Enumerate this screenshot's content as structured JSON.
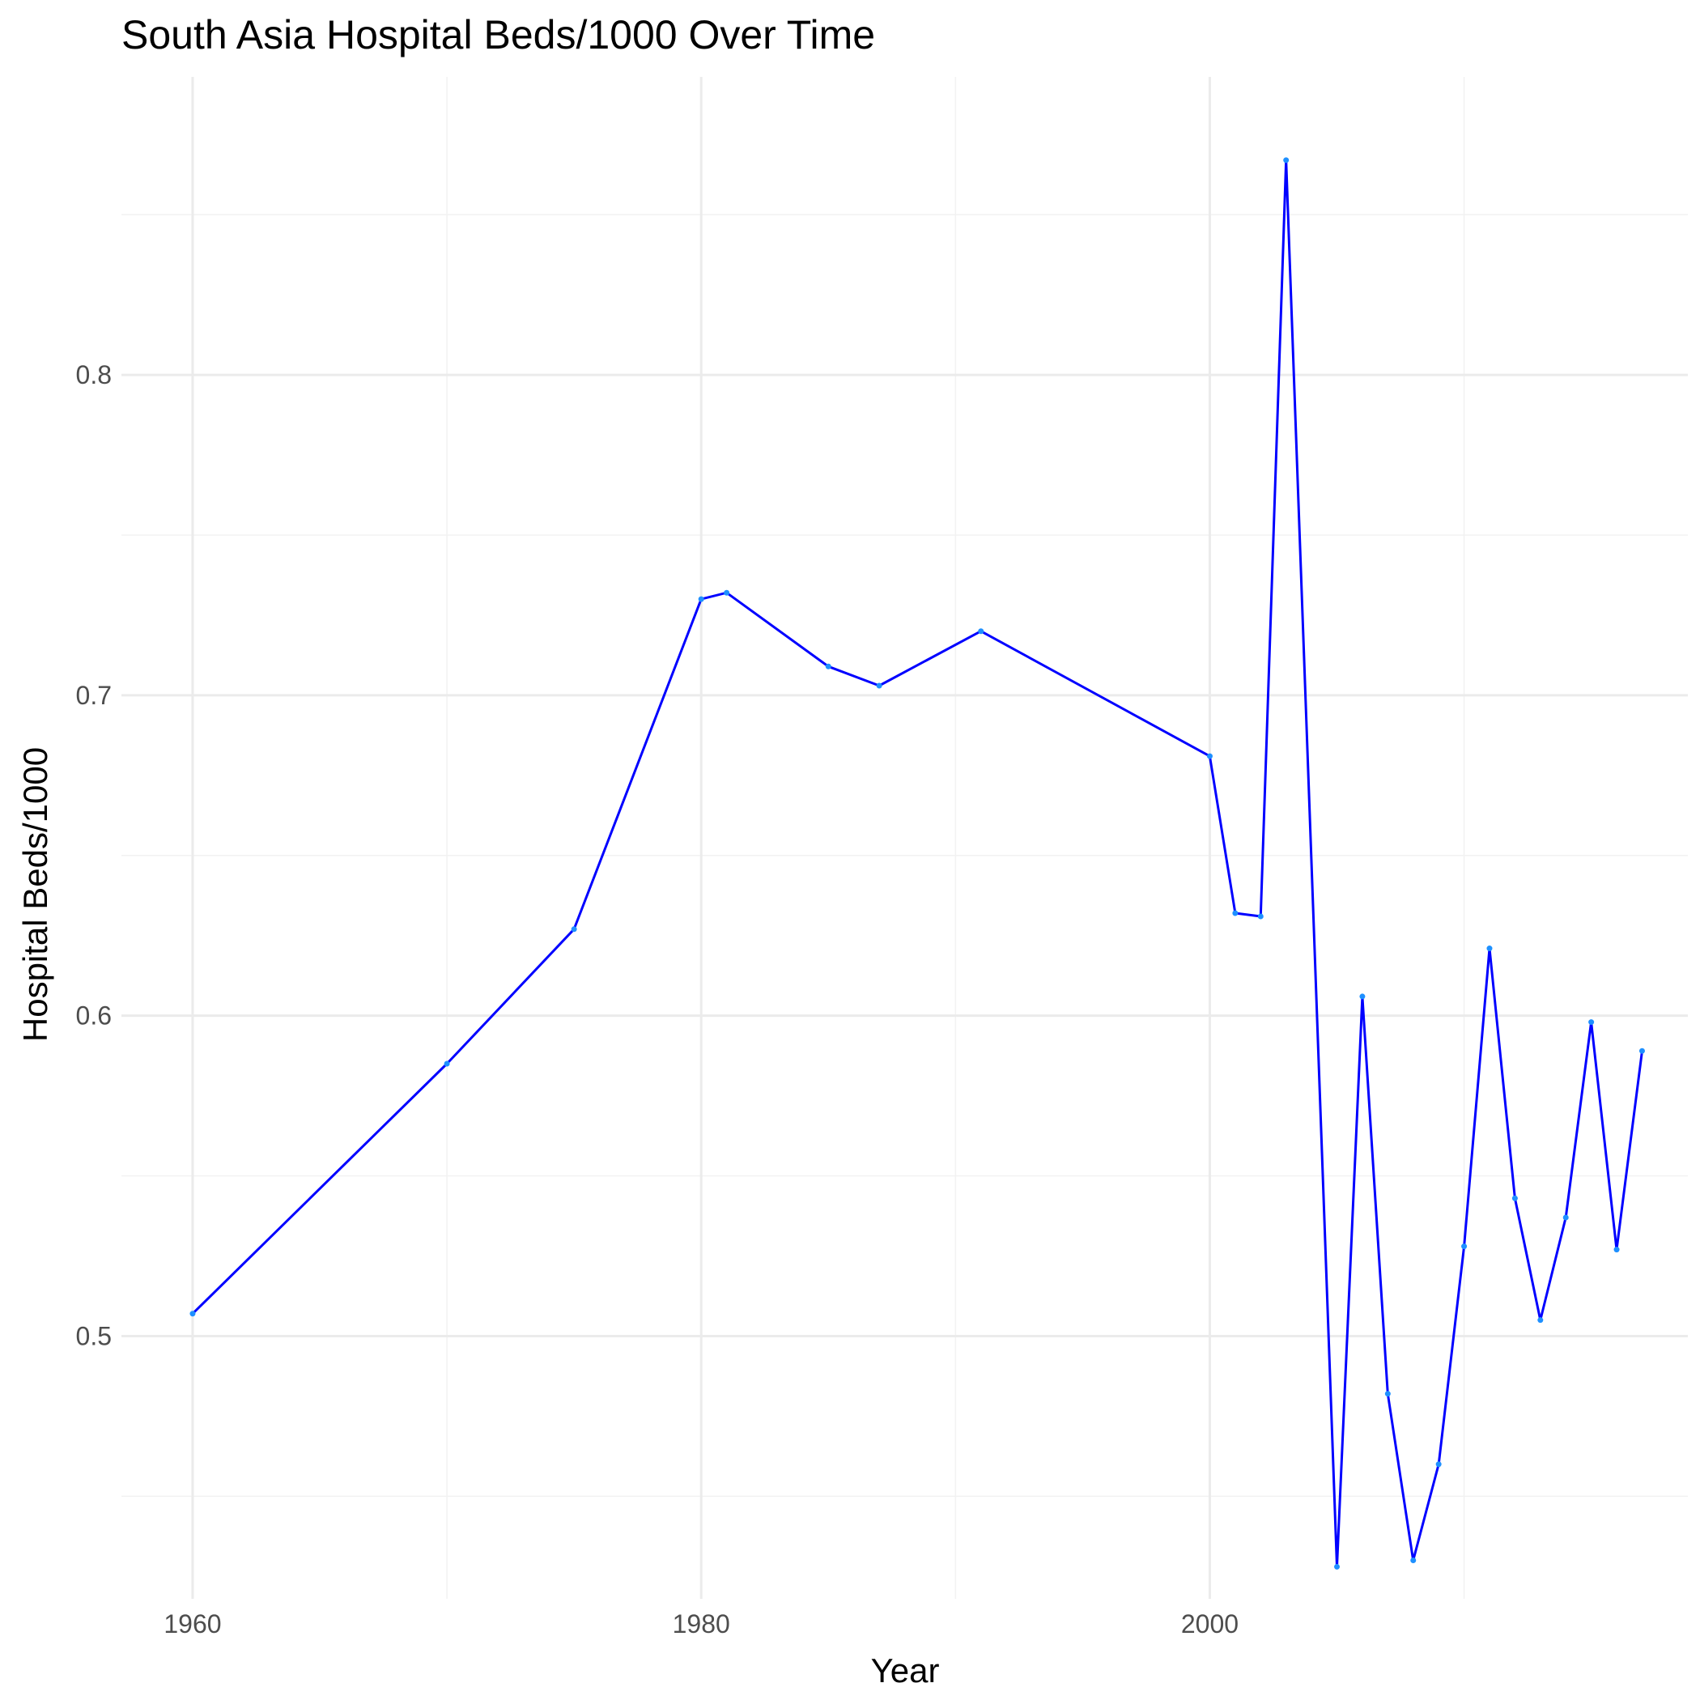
{
  "chart_data": {
    "type": "line",
    "title": "South Asia Hospital Beds/1000 Over Time",
    "xlabel": "Year",
    "ylabel": "Hospital Beds/1000",
    "xlim": [
      1957.2,
      2018.8
    ],
    "ylim": [
      0.418,
      0.893
    ],
    "x_ticks": [
      1960,
      1980,
      2000
    ],
    "x_minor_ticks": [
      1970,
      1990,
      2010
    ],
    "y_ticks": [
      0.5,
      0.6,
      0.7,
      0.8
    ],
    "y_minor_ticks": [
      0.45,
      0.55,
      0.65,
      0.75,
      0.85
    ],
    "grid": true,
    "line_color": "#0000ff",
    "point_color": "#1e90ff",
    "series": [
      {
        "x": [
          1960,
          1970,
          1975,
          1980,
          1981,
          1985,
          1987,
          1991,
          2000,
          2001,
          2002,
          2003,
          2005,
          2006,
          2007,
          2008,
          2009,
          2010,
          2011,
          2012,
          2013,
          2014,
          2015,
          2016,
          2017
        ],
        "values": [
          0.507,
          0.585,
          0.627,
          0.73,
          0.732,
          0.709,
          0.703,
          0.72,
          0.681,
          0.632,
          0.631,
          0.867,
          0.428,
          0.606,
          0.482,
          0.43,
          0.46,
          0.528,
          0.621,
          0.543,
          0.505,
          0.537,
          0.598,
          0.527,
          0.589
        ]
      }
    ]
  }
}
